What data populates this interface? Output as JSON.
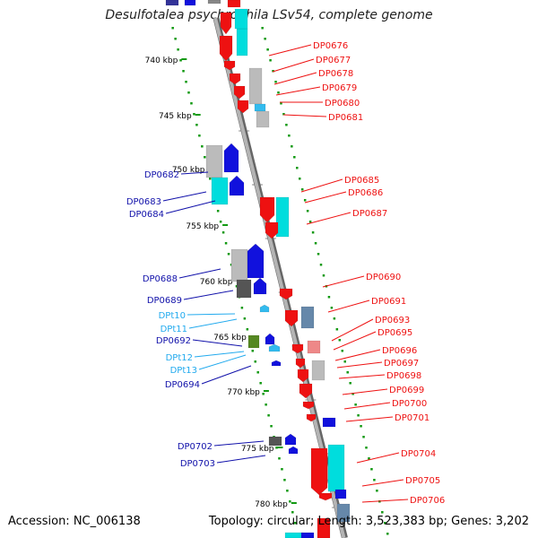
{
  "title": "Desulfotalea psychrophila LSv54, complete genome",
  "footer": {
    "accession": "Accession: NC_006138",
    "topology": "Topology: circular; Length: 3,523,383 bp; Genes: 3,202"
  },
  "colors": {
    "forward_gene": "#ee1111",
    "reverse_gene": "#1111dd",
    "rna": "#33bbee",
    "backbone": "#999999",
    "scale_dots": "#119911",
    "teal": "#00dddd",
    "gray": "#bbbbbb"
  },
  "scale_labels": [
    "740 kbp",
    "745 kbp",
    "750 kbp",
    "755 kbp",
    "760 kbp",
    "765 kbp",
    "770 kbp",
    "775 kbp",
    "780 kbp"
  ],
  "labels_reverse": [
    "DP0682",
    "DP0683",
    "DP0684",
    "DP0688",
    "DP0689",
    "DP0692",
    "DP0694",
    "DP0702",
    "DP0703"
  ],
  "labels_rna": [
    "DPt10",
    "DPt11",
    "DPt12",
    "DPt13"
  ],
  "labels_forward": [
    "DP0676",
    "DP0677",
    "DP0678",
    "DP0679",
    "DP0680",
    "DP0681",
    "DP0685",
    "DP0686",
    "DP0687",
    "DP0690",
    "DP0691",
    "DP0693",
    "DP0695",
    "DP0696",
    "DP0697",
    "DP0698",
    "DP0699",
    "DP0700",
    "DP0701",
    "DP0704",
    "DP0705",
    "DP0706"
  ]
}
